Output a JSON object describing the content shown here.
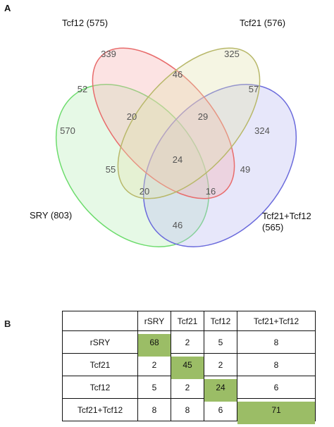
{
  "panel_a": {
    "letter": "A",
    "sets": [
      {
        "label": "Tcf12 (575)",
        "stroke": "#e86c6c",
        "fill": "#f5b0b0"
      },
      {
        "label": "Tcf21 (576)",
        "stroke": "#b8b86a",
        "fill": "#e2e2b0"
      },
      {
        "label": "SRY (803)",
        "stroke": "#6ddc6d",
        "fill": "#b8efb8"
      },
      {
        "label_line1": "Tcf21+Tcf12",
        "label_line2": "(565)",
        "stroke": "#6b6bdc",
        "fill": "#b9b9f2"
      }
    ],
    "counts": {
      "tcf12_only": "339",
      "tcf21_only": "325",
      "sry_only": "570",
      "combo_only": "324",
      "tcf12_tcf21": "46",
      "sry_tcf12": "52",
      "tcf21_combo": "57",
      "sry_tcf12_tcf21": "20",
      "tcf12_tcf21_combo": "29",
      "all_four": "24",
      "sry_tcf21": "55",
      "tcf12_combo": "49",
      "sry_tcf21_combo": "20",
      "sry_tcf12_combo": "16",
      "sry_combo": "46"
    }
  },
  "panel_b": {
    "letter": "B",
    "highlight_color": "#9bbd66",
    "columns": [
      "rSRY",
      "Tcf21",
      "Tcf12",
      "Tcf21+Tcf12"
    ],
    "rows": [
      {
        "label": "rSRY",
        "values": [
          "68",
          "2",
          "5",
          "8"
        ]
      },
      {
        "label": "Tcf21",
        "values": [
          "2",
          "45",
          "2",
          "8"
        ]
      },
      {
        "label": "Tcf12",
        "values": [
          "5",
          "2",
          "24",
          "6"
        ]
      },
      {
        "label": "Tcf21+Tcf12",
        "values": [
          "8",
          "8",
          "6",
          "71"
        ]
      }
    ]
  }
}
